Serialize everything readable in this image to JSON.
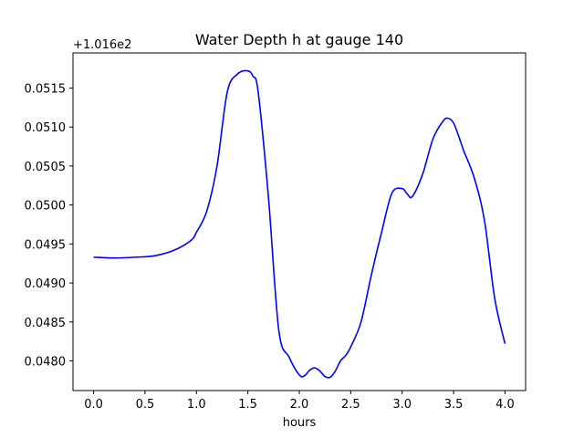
{
  "chart_data": {
    "type": "line",
    "title": "Water Depth h at gauge 140",
    "xlabel": "hours",
    "ylabel": "",
    "offset_label": "+1.016e2",
    "xlim": [
      -0.2,
      4.2
    ],
    "ylim": [
      0.04762,
      0.05195
    ],
    "xticks": [
      0.0,
      0.5,
      1.0,
      1.5,
      2.0,
      2.5,
      3.0,
      3.5,
      4.0
    ],
    "xtick_labels": [
      "0.0",
      "0.5",
      "1.0",
      "1.5",
      "2.0",
      "2.5",
      "3.0",
      "3.5",
      "4.0"
    ],
    "yticks": [
      0.048,
      0.0485,
      0.049,
      0.0495,
      0.05,
      0.0505,
      0.051,
      0.0515
    ],
    "ytick_labels": [
      "0.0480",
      "0.0485",
      "0.0490",
      "0.0495",
      "0.0500",
      "0.0505",
      "0.0510",
      "0.0515"
    ],
    "grid": false,
    "series": [
      {
        "color": "#0000ff",
        "x": [
          0.0,
          0.2,
          0.4,
          0.6,
          0.8,
          0.95,
          1.0,
          1.1,
          1.2,
          1.3,
          1.4,
          1.5,
          1.55,
          1.6,
          1.7,
          1.8,
          1.9,
          2.0,
          2.05,
          2.1,
          2.15,
          2.2,
          2.25,
          2.3,
          2.35,
          2.4,
          2.45,
          2.5,
          2.6,
          2.7,
          2.8,
          2.9,
          3.0,
          3.05,
          3.1,
          3.2,
          3.3,
          3.4,
          3.45,
          3.5,
          3.55,
          3.6,
          3.7,
          3.8,
          3.9,
          4.0
        ],
        "y": [
          0.04933,
          0.04932,
          0.04933,
          0.04935,
          0.04943,
          0.04955,
          0.04965,
          0.04992,
          0.0505,
          0.05145,
          0.05168,
          0.05172,
          0.05165,
          0.05145,
          0.0501,
          0.0484,
          0.04805,
          0.04782,
          0.04781,
          0.04788,
          0.04791,
          0.04787,
          0.0478,
          0.04779,
          0.04787,
          0.048,
          0.04807,
          0.04818,
          0.0485,
          0.0491,
          0.04965,
          0.05015,
          0.05021,
          0.05014,
          0.05011,
          0.0504,
          0.05085,
          0.05108,
          0.05111,
          0.05105,
          0.05088,
          0.05069,
          0.05035,
          0.0498,
          0.0488,
          0.04822
        ]
      }
    ]
  }
}
